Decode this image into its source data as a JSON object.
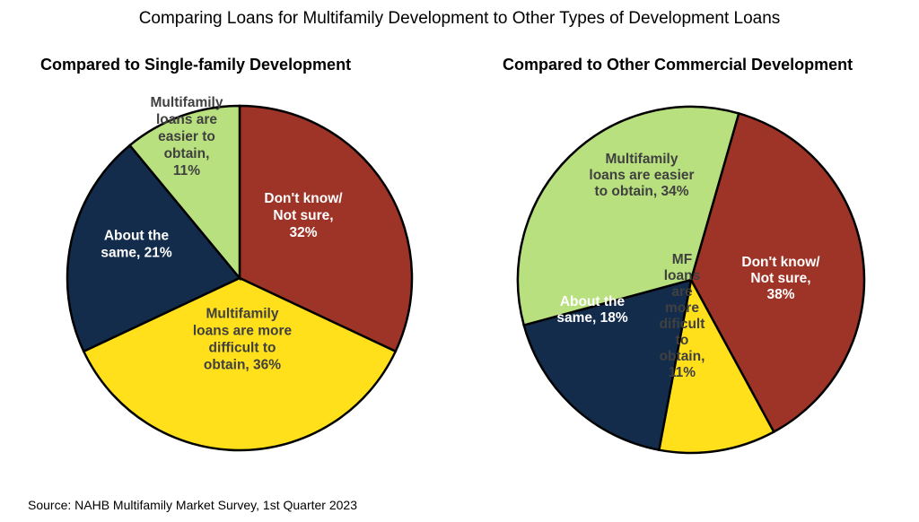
{
  "title": "Comparing Loans for Multifamily Development to Other Types of Development Loans",
  "source": "Source: NAHB Multifamily Market Survey, 1st Quarter 2023",
  "colors": {
    "dont_know": "#9E3327",
    "more_difficult": "#FFE01A",
    "about_same": "#132C4C",
    "easier": "#B8E07E"
  },
  "chart_data": [
    {
      "type": "pie",
      "title": "Compared to Single-family Development",
      "slices": [
        {
          "label": "Don't know/ Not sure, 32%",
          "lines": [
            "Don't know/",
            "Not sure,",
            "32%"
          ],
          "value": 32,
          "color_key": "dont_know",
          "text_color": "#FFFFFF"
        },
        {
          "label": "Multifamily loans are more difficult to obtain, 36%",
          "lines": [
            "Multifamily",
            "loans are more",
            "difficult to",
            "obtain, 36%"
          ],
          "value": 36,
          "color_key": "more_difficult",
          "text_color": "#404040"
        },
        {
          "label": "About the same, 21%",
          "lines": [
            "About the",
            "same, 21%"
          ],
          "value": 21,
          "color_key": "about_same",
          "text_color": "#FFFFFF"
        },
        {
          "label": "Multifamily loans are easier to obtain, 11%",
          "lines": [
            "Multifamily",
            "loans are",
            "easier to",
            "obtain,",
            "11%"
          ],
          "value": 11,
          "color_key": "easier",
          "text_color": "#404040"
        }
      ]
    },
    {
      "type": "pie",
      "title": "Compared to Other Commercial Development",
      "slices": [
        {
          "label": "Don't know/ Not sure, 38%",
          "lines": [
            "Don't know/",
            "Not sure,",
            "38%"
          ],
          "value": 38,
          "color_key": "dont_know",
          "text_color": "#FFFFFF"
        },
        {
          "label": "MF loans are more dificult to obtain, 11%",
          "lines": [
            "MF",
            "loans",
            "are",
            "more",
            "dificult",
            "to",
            "obtain,",
            "11%"
          ],
          "value": 11,
          "color_key": "more_difficult",
          "text_color": "#404040"
        },
        {
          "label": "About the same, 18%",
          "lines": [
            "About the",
            "same, 18%"
          ],
          "value": 18,
          "color_key": "about_same",
          "text_color": "#FFFFFF"
        },
        {
          "label": "Multifamily loans are easier to obtain, 34%",
          "lines": [
            "Multifamily",
            "loans are easier",
            "to obtain, 34%"
          ],
          "value": 34,
          "color_key": "easier",
          "text_color": "#404040"
        }
      ]
    }
  ]
}
